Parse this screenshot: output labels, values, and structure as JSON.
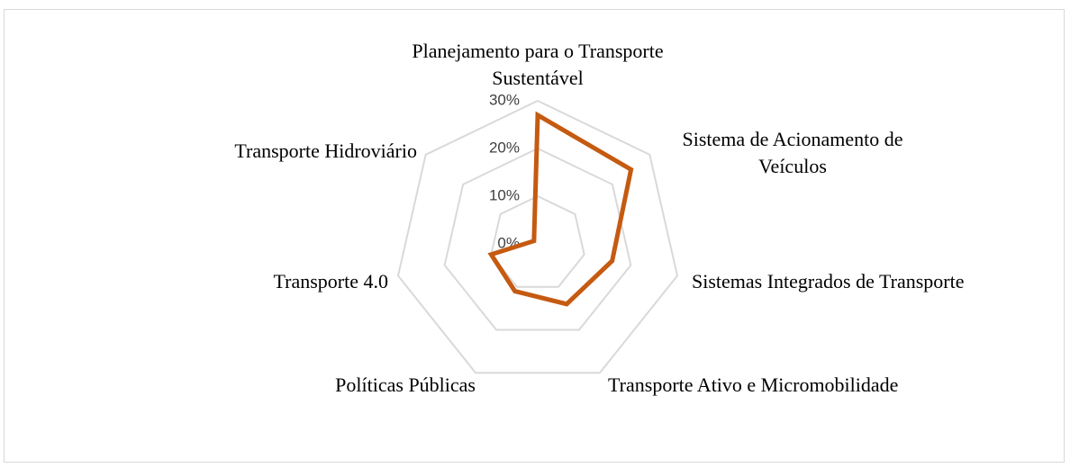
{
  "chart_data": {
    "type": "radar",
    "categories": [
      "Planejamento para o Transporte Sustentável",
      "Sistema de Acionamento de Veículos",
      "Sistemas Integrados de Transporte",
      "Transporte Ativo e Micromobilidade",
      "Políticas Públicas",
      "Transporte 4.0",
      "Transporte Hidroviário"
    ],
    "series": [
      {
        "name": null,
        "color": "#c55a11",
        "values": [
          27,
          25,
          16,
          14,
          11,
          10,
          1
        ]
      }
    ],
    "ylim": [
      0,
      30
    ],
    "yticks": [
      {
        "value": 0,
        "label": "0%"
      },
      {
        "value": 10,
        "label": "10%"
      },
      {
        "value": 20,
        "label": "20%"
      },
      {
        "value": 30,
        "label": "30%"
      }
    ],
    "grid": true,
    "grid_color": "#d9d9d9"
  }
}
